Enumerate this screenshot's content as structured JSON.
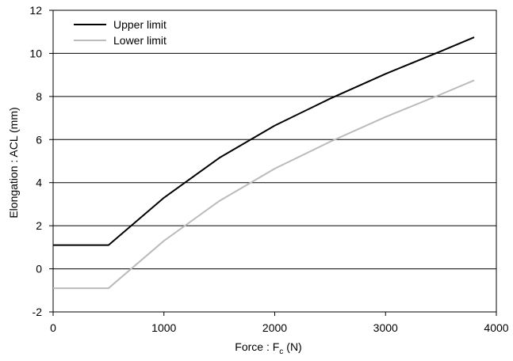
{
  "chart_data": {
    "type": "line",
    "xlabel": "Force : F",
    "xlabel_sub": "c",
    "xlabel_unit": "(N)",
    "ylabel": "Elongation : ACL (mm)",
    "xlim": [
      0,
      4000
    ],
    "ylim": [
      -2,
      12
    ],
    "xticks": [
      0,
      1000,
      2000,
      3000,
      4000
    ],
    "yticks": [
      -2,
      0,
      2,
      4,
      6,
      8,
      10,
      12
    ],
    "grid": "horizontal",
    "legend_position": "top-left",
    "series": [
      {
        "name": "Upper limit",
        "color": "#000000",
        "x": [
          0,
          500,
          1000,
          1500,
          2000,
          2500,
          3000,
          3500,
          3800
        ],
        "y": [
          1.1,
          1.1,
          3.3,
          5.15,
          6.65,
          7.9,
          9.05,
          10.1,
          10.75
        ]
      },
      {
        "name": "Lower limit",
        "color": "#bbbbbb",
        "x": [
          0,
          500,
          1000,
          1500,
          2000,
          2500,
          3000,
          3500,
          3800
        ],
        "y": [
          -0.9,
          -0.9,
          1.3,
          3.15,
          4.65,
          5.9,
          7.05,
          8.1,
          8.75
        ]
      }
    ]
  }
}
